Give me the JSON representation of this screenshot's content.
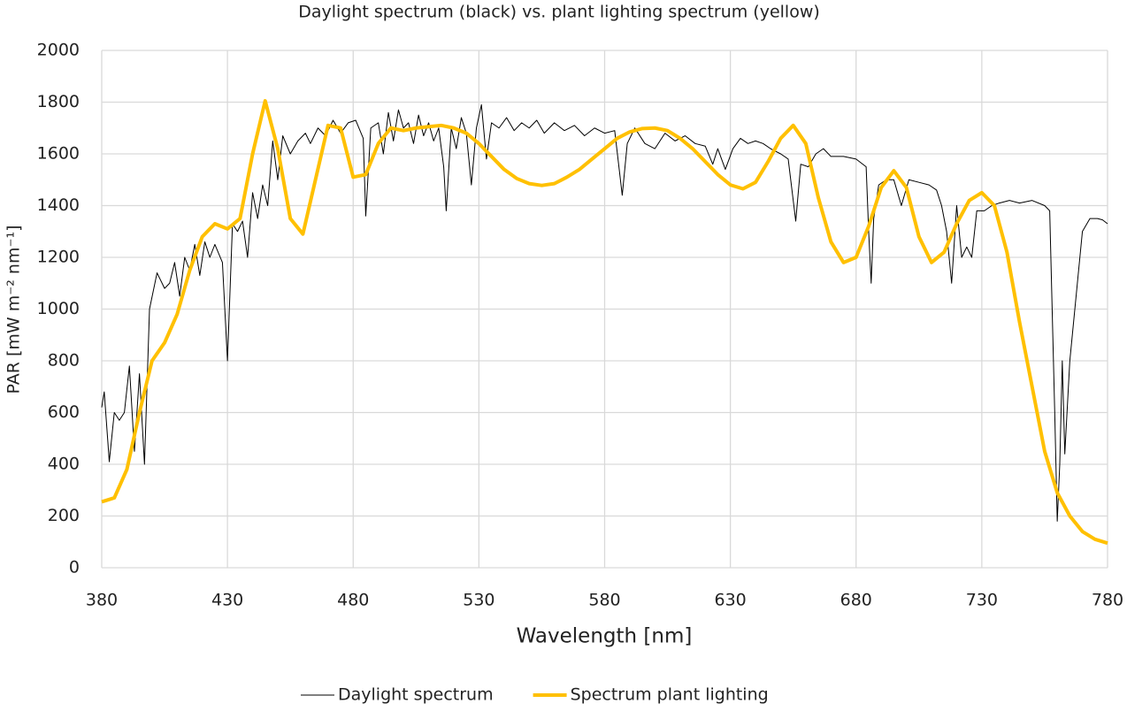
{
  "chart_data": {
    "type": "line",
    "title": "Daylight spectrum (black) vs. plant lighting spectrum (yellow)",
    "x_label": "Wavelength [nm]",
    "y_label": "PAR [mW m⁻² nm⁻¹]",
    "xlim": [
      380,
      780
    ],
    "xticks": [
      380,
      430,
      480,
      530,
      580,
      630,
      680,
      730,
      780
    ],
    "ylim": [
      0,
      2000
    ],
    "yticks": [
      0,
      200,
      400,
      600,
      800,
      1000,
      1200,
      1400,
      1600,
      1800,
      2000
    ],
    "grid": true,
    "legend": "bottom",
    "series": [
      {
        "name": "Daylight spectrum",
        "color": "#000000",
        "width": 1,
        "x": [
          380,
          381,
          383,
          385,
          387,
          389,
          391,
          393,
          395,
          397,
          399,
          402,
          405,
          407,
          409,
          411,
          413,
          415,
          417,
          419,
          421,
          423,
          425,
          428,
          430,
          432,
          434,
          436,
          438,
          440,
          442,
          444,
          446,
          448,
          450,
          452,
          455,
          458,
          461,
          463,
          466,
          469,
          472,
          475,
          478,
          481,
          484,
          485,
          487,
          490,
          492,
          494,
          496,
          498,
          500,
          502,
          504,
          506,
          508,
          510,
          512,
          514,
          516,
          517,
          519,
          521,
          523,
          525,
          527,
          529,
          531,
          533,
          535,
          538,
          541,
          544,
          547,
          550,
          553,
          556,
          560,
          564,
          568,
          572,
          576,
          580,
          584,
          587,
          589,
          592,
          596,
          600,
          604,
          608,
          612,
          616,
          620,
          623,
          625,
          628,
          631,
          634,
          637,
          640,
          643,
          646,
          650,
          653,
          655,
          656,
          658,
          661,
          664,
          667,
          670,
          675,
          680,
          684,
          685,
          686,
          687,
          689,
          692,
          695,
          698,
          701,
          705,
          709,
          712,
          714,
          716,
          718,
          720,
          722,
          724,
          726,
          728,
          731,
          734,
          737,
          741,
          745,
          750,
          755,
          757,
          759,
          760,
          761,
          762,
          763,
          765,
          768,
          770,
          773,
          776,
          778,
          780
        ],
        "values": [
          620,
          680,
          410,
          600,
          570,
          600,
          780,
          450,
          750,
          400,
          1000,
          1140,
          1080,
          1100,
          1180,
          1050,
          1200,
          1150,
          1250,
          1130,
          1260,
          1200,
          1250,
          1180,
          800,
          1330,
          1300,
          1340,
          1200,
          1450,
          1350,
          1480,
          1400,
          1650,
          1500,
          1670,
          1600,
          1650,
          1680,
          1640,
          1700,
          1670,
          1730,
          1680,
          1720,
          1730,
          1660,
          1360,
          1700,
          1720,
          1600,
          1760,
          1650,
          1770,
          1700,
          1720,
          1640,
          1750,
          1670,
          1720,
          1650,
          1700,
          1550,
          1380,
          1700,
          1620,
          1740,
          1680,
          1480,
          1700,
          1790,
          1580,
          1720,
          1700,
          1740,
          1690,
          1720,
          1700,
          1730,
          1680,
          1720,
          1690,
          1710,
          1670,
          1700,
          1680,
          1690,
          1440,
          1640,
          1700,
          1640,
          1620,
          1680,
          1650,
          1670,
          1640,
          1630,
          1560,
          1620,
          1540,
          1620,
          1660,
          1640,
          1650,
          1640,
          1620,
          1600,
          1580,
          1420,
          1340,
          1560,
          1550,
          1600,
          1620,
          1590,
          1590,
          1580,
          1550,
          1300,
          1100,
          1350,
          1480,
          1500,
          1500,
          1400,
          1500,
          1490,
          1480,
          1460,
          1400,
          1300,
          1100,
          1400,
          1200,
          1240,
          1200,
          1380,
          1380,
          1400,
          1410,
          1420,
          1410,
          1420,
          1400,
          1380,
          600,
          180,
          400,
          800,
          440,
          800,
          1100,
          1300,
          1350,
          1350,
          1345,
          1330
        ]
      },
      {
        "name": "Spectrum plant lighting",
        "color": "#ffc000",
        "width": 4,
        "x": [
          380,
          385,
          390,
          395,
          400,
          405,
          410,
          415,
          420,
          425,
          430,
          435,
          440,
          445,
          450,
          455,
          460,
          465,
          470,
          475,
          480,
          485,
          490,
          495,
          500,
          505,
          510,
          515,
          520,
          525,
          530,
          535,
          540,
          545,
          550,
          555,
          560,
          565,
          570,
          575,
          580,
          585,
          590,
          595,
          600,
          605,
          610,
          615,
          620,
          625,
          630,
          635,
          640,
          645,
          650,
          655,
          660,
          665,
          670,
          675,
          680,
          685,
          690,
          695,
          700,
          705,
          710,
          715,
          720,
          725,
          730,
          735,
          740,
          745,
          750,
          755,
          760,
          765,
          770,
          775,
          780
        ],
        "values": [
          255,
          270,
          380,
          600,
          800,
          870,
          980,
          1150,
          1280,
          1330,
          1310,
          1350,
          1600,
          1805,
          1620,
          1350,
          1290,
          1500,
          1710,
          1700,
          1510,
          1520,
          1640,
          1700,
          1690,
          1700,
          1705,
          1710,
          1700,
          1680,
          1640,
          1590,
          1540,
          1505,
          1485,
          1478,
          1485,
          1510,
          1540,
          1580,
          1620,
          1660,
          1685,
          1698,
          1700,
          1690,
          1660,
          1620,
          1570,
          1520,
          1480,
          1465,
          1490,
          1570,
          1660,
          1710,
          1640,
          1430,
          1260,
          1180,
          1200,
          1320,
          1470,
          1535,
          1470,
          1280,
          1180,
          1220,
          1330,
          1420,
          1450,
          1400,
          1220,
          950,
          700,
          450,
          290,
          200,
          140,
          110,
          95
        ]
      }
    ]
  }
}
